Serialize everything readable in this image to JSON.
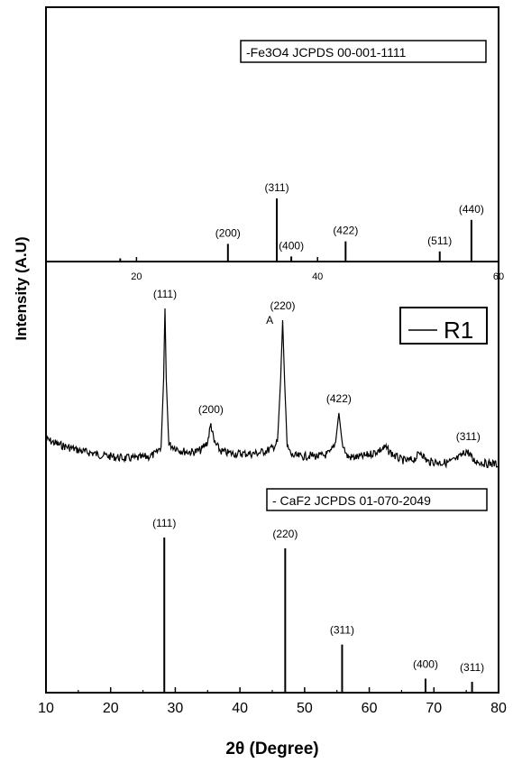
{
  "chart_data": [
    {
      "panel": "top",
      "type": "bar",
      "legend": "-Fe3O4 JCPDS 00-001-1111",
      "xlim": [
        10,
        60
      ],
      "x_ticks": [
        20,
        40,
        60
      ],
      "x_tick_labels": [
        "20",
        "40",
        "60"
      ],
      "reference_lines": [
        {
          "x": 18.2,
          "intensity": 5,
          "label": ""
        },
        {
          "x": 30.1,
          "intensity": 28,
          "label": "(200)"
        },
        {
          "x": 35.5,
          "intensity": 100,
          "label": "(311)"
        },
        {
          "x": 37.1,
          "intensity": 8,
          "label": "(400)"
        },
        {
          "x": 43.1,
          "intensity": 32,
          "label": "(422)"
        },
        {
          "x": 53.5,
          "intensity": 16,
          "label": "(511)"
        },
        {
          "x": 57.0,
          "intensity": 66,
          "label": "(440)"
        }
      ]
    },
    {
      "panel": "middle",
      "type": "line",
      "legend": "R1",
      "series": [
        {
          "name": "R1",
          "points": [
            [
              10,
              487
            ],
            [
              11,
              490
            ],
            [
              12,
              493
            ],
            [
              13,
              495
            ],
            [
              14,
              497
            ],
            [
              15,
              499
            ],
            [
              16,
              501
            ],
            [
              17,
              502
            ],
            [
              18,
              504
            ],
            [
              19,
              505
            ],
            [
              20,
              506
            ],
            [
              21,
              507
            ],
            [
              22,
              508
            ],
            [
              23,
              508
            ],
            [
              24,
              508
            ],
            [
              25,
              507
            ],
            [
              26,
              506
            ],
            [
              27,
              503
            ],
            [
              27.8,
              495
            ],
            [
              28.2,
              420
            ],
            [
              28.4,
              342
            ],
            [
              28.6,
              420
            ],
            [
              29,
              493
            ],
            [
              30,
              496
            ],
            [
              31,
              500
            ],
            [
              32,
              501
            ],
            [
              33,
              501
            ],
            [
              34,
              499
            ],
            [
              35,
              490
            ],
            [
              35.5,
              470
            ],
            [
              36,
              490
            ],
            [
              37,
              500
            ],
            [
              38,
              502
            ],
            [
              39,
              503
            ],
            [
              40,
              503
            ],
            [
              41,
              503
            ],
            [
              42,
              503
            ],
            [
              43,
              502
            ],
            [
              44,
              500
            ],
            [
              45,
              497
            ],
            [
              45.8,
              490
            ],
            [
              46.3,
              420
            ],
            [
              46.6,
              355
            ],
            [
              46.9,
              420
            ],
            [
              47.3,
              495
            ],
            [
              48,
              505
            ],
            [
              49,
              506
            ],
            [
              50,
              506
            ],
            [
              51,
              505
            ],
            [
              52,
              506
            ],
            [
              53,
              505
            ],
            [
              54,
              502
            ],
            [
              54.8,
              490
            ],
            [
              55.3,
              458
            ],
            [
              55.8,
              490
            ],
            [
              56.5,
              505
            ],
            [
              57,
              507
            ],
            [
              58,
              507
            ],
            [
              59,
              506
            ],
            [
              60,
              504
            ],
            [
              61,
              501
            ],
            [
              62,
              498
            ],
            [
              62.5,
              496
            ],
            [
              63,
              500
            ],
            [
              64,
              506
            ],
            [
              65,
              510
            ],
            [
              66,
              511
            ],
            [
              67,
              509
            ],
            [
              68,
              501
            ],
            [
              68.5,
              507
            ],
            [
              69,
              512
            ],
            [
              70,
              512
            ],
            [
              71,
              513
            ],
            [
              72,
              513
            ],
            [
              73,
              511
            ],
            [
              74,
              507
            ],
            [
              75,
              500
            ],
            [
              75.5,
              503
            ],
            [
              76,
              510
            ],
            [
              77,
              512
            ],
            [
              78,
              514
            ],
            [
              79,
              514
            ],
            [
              80,
              515
            ]
          ]
        }
      ],
      "peak_labels": [
        {
          "x": 28.4,
          "label": "(111)"
        },
        {
          "x": 44.6,
          "label": "A"
        },
        {
          "x": 46.6,
          "label": "(220)"
        },
        {
          "x": 35.5,
          "label": "(200)"
        },
        {
          "x": 55.3,
          "label": "(422)"
        },
        {
          "x": 75.3,
          "label": "(311)"
        }
      ]
    },
    {
      "panel": "bottom",
      "type": "bar",
      "legend": "- CaF2 JCPDS 01-070-2049",
      "xlim": [
        10,
        80
      ],
      "x_ticks": [
        10,
        20,
        30,
        40,
        50,
        60,
        70,
        80
      ],
      "x_tick_labels": [
        "10",
        "20",
        "30",
        "40",
        "50",
        "60",
        "70",
        "80"
      ],
      "xlabel": "2θ (Degree)",
      "ylabel": "Intensity (A.U)",
      "reference_lines": [
        {
          "x": 28.3,
          "intensity": 100,
          "label": "(111)"
        },
        {
          "x": 47.0,
          "intensity": 93,
          "label": "(220)"
        },
        {
          "x": 55.8,
          "intensity": 31,
          "label": "(311)"
        },
        {
          "x": 68.7,
          "intensity": 9,
          "label": "(400)"
        },
        {
          "x": 75.9,
          "intensity": 7,
          "label": "(311)"
        }
      ]
    }
  ]
}
